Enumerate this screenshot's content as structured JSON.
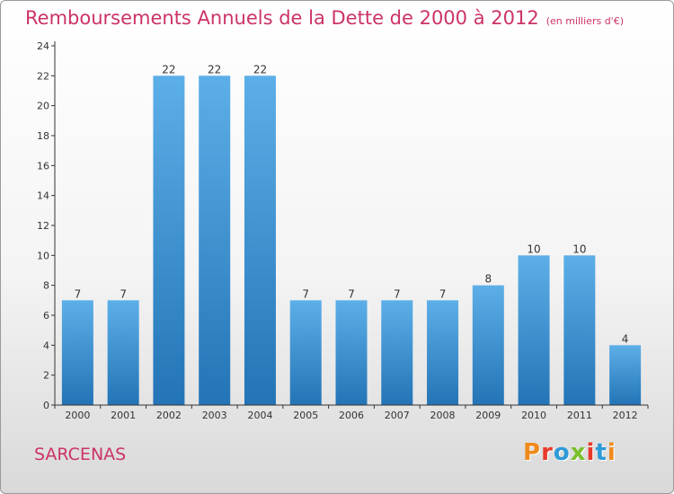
{
  "header": {
    "title": "Remboursements Annuels de la Dette de 2000 à 2012",
    "unit": "(en milliers d'€)"
  },
  "footer": {
    "commune": "SARCENAS",
    "brand": "Proxiti",
    "brand_colors": [
      "#f08a1c",
      "#e8392b",
      "#2f9ad8",
      "#7abf2a",
      "#e8392b",
      "#2f9ad8",
      "#f08a1c"
    ]
  },
  "colors": {
    "title": "#cc3366",
    "bar_light": "#5dafe8",
    "bar_dark": "#2374b6",
    "axis": "#333333"
  },
  "chart_data": {
    "type": "bar",
    "title": "Remboursements Annuels de la Dette de 2000 à 2012",
    "categories": [
      "2000",
      "2001",
      "2002",
      "2003",
      "2004",
      "2005",
      "2006",
      "2007",
      "2008",
      "2009",
      "2010",
      "2011",
      "2012"
    ],
    "values": [
      7,
      7,
      22,
      22,
      22,
      7,
      7,
      7,
      7,
      8,
      10,
      10,
      4
    ],
    "ylim": [
      0,
      24
    ],
    "yticks": [
      0,
      2,
      4,
      6,
      8,
      10,
      12,
      14,
      16,
      18,
      20,
      22,
      24
    ],
    "grid": false,
    "legend": "none"
  }
}
